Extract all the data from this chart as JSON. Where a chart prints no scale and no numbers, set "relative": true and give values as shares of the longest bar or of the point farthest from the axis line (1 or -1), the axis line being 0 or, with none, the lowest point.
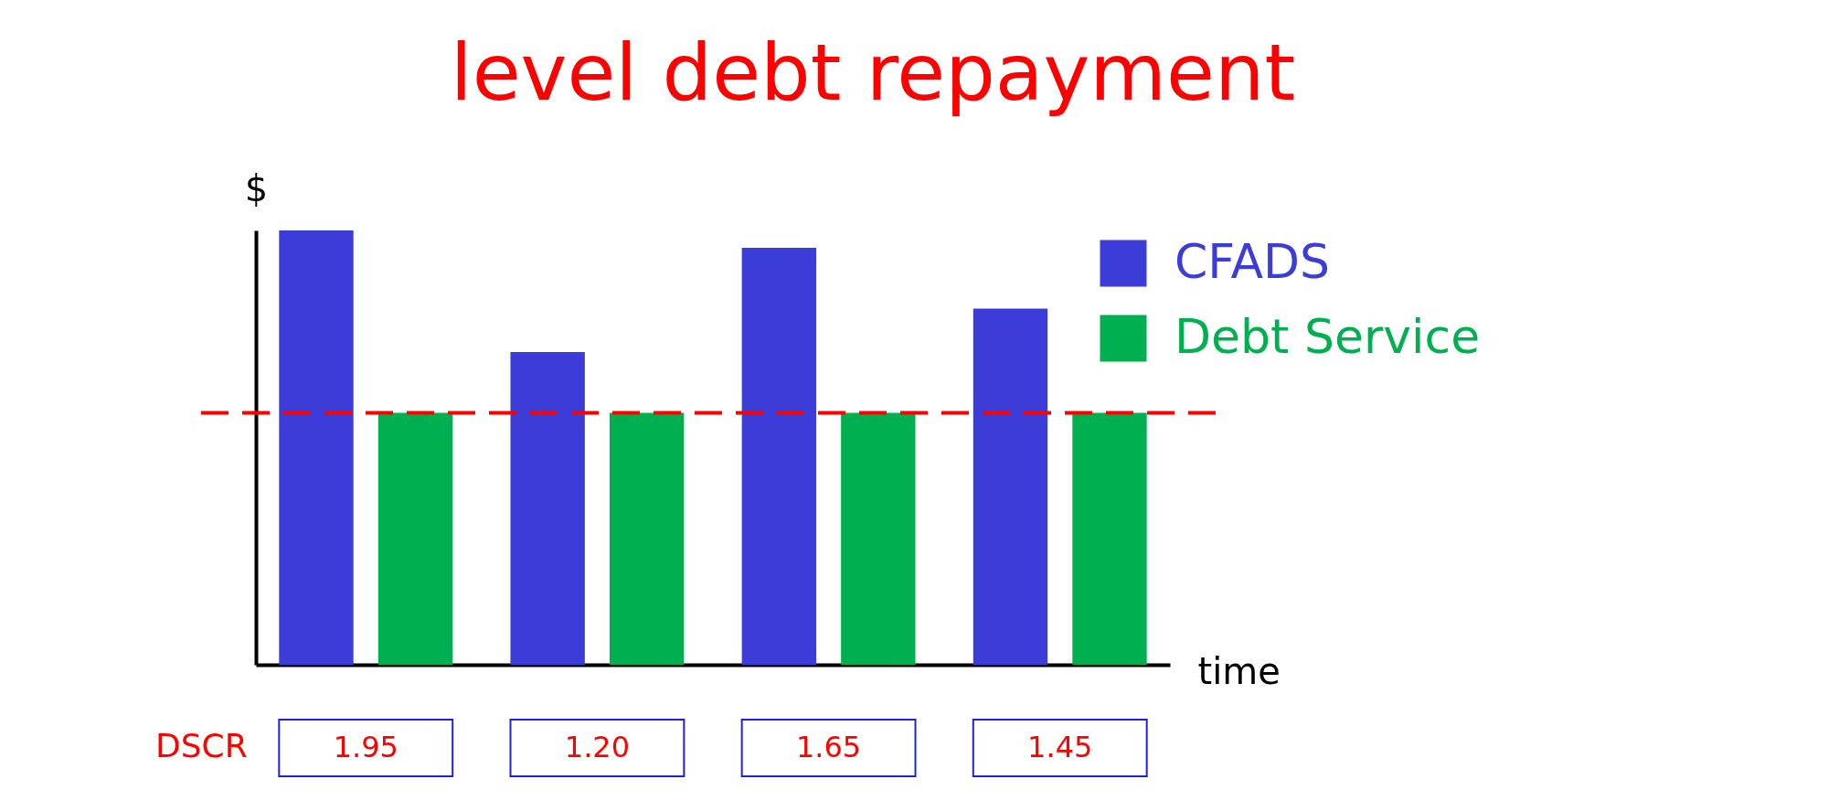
{
  "chart_data": {
    "type": "bar",
    "title": "level debt repayment",
    "xlabel": "time",
    "ylabel": "$",
    "relative": true,
    "categories": [
      null,
      null,
      null,
      null
    ],
    "series": [
      {
        "name": "CFADS",
        "color": "#3c3cd8",
        "values": [
          1.0,
          0.72,
          0.96,
          0.82
        ]
      },
      {
        "name": "Debt Service",
        "color": "#00b050",
        "values": [
          0.58,
          0.58,
          0.58,
          0.58
        ]
      }
    ],
    "ref_lines": [
      {
        "axis": "y",
        "value": 0.58,
        "label": null,
        "color": "#ff0000",
        "line_style": "dashed"
      }
    ],
    "annotations": [
      "DSCR",
      "1.95",
      "1.20",
      "1.65",
      "1.45"
    ],
    "legend": "top right",
    "tick_labels": false
  }
}
